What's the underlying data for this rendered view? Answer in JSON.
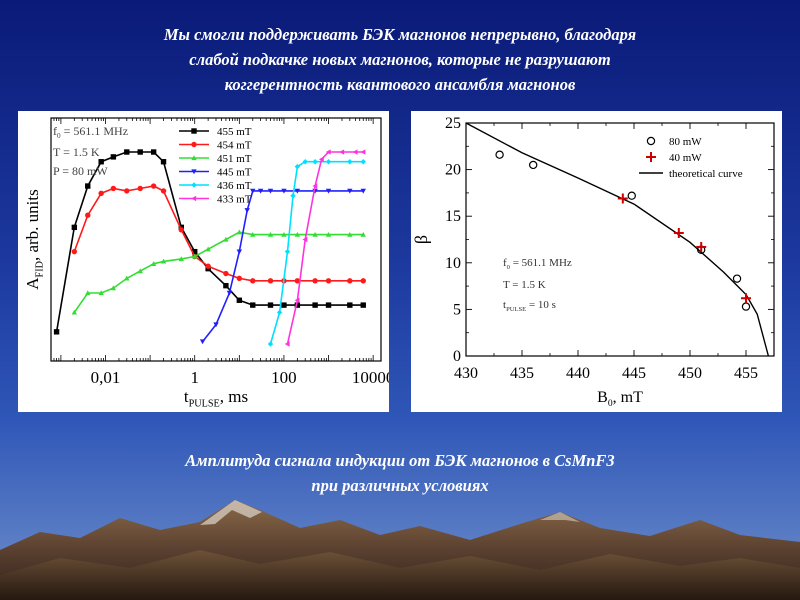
{
  "slide": {
    "title_lines": [
      "Мы смогли поддерживать БЭК магнонов непрерывно, благодаря",
      "слабой подкачке новых магнонов, которые не разрушают",
      "коггерентность квантового ансамбля магнонов"
    ],
    "caption_lines": [
      "Амплитуда сигнала индукции от БЭК магнонов в CsMnF3",
      "при различных условиях"
    ]
  },
  "chart_data": [
    {
      "type": "line",
      "x_scale": "log",
      "xlim": [
        0.0006,
        15000
      ],
      "ylim": [
        0,
        1
      ],
      "xlabel_main": "t",
      "xlabel_sub": "PULSE",
      "xlabel_unit": ", ms",
      "ylabel_main": "A",
      "ylabel_sub": "FID",
      "ylabel_unit": ", arb. units",
      "x_ticks": [
        0.01,
        1,
        100,
        10000
      ],
      "x_tick_labels": [
        "0,01",
        "1",
        "100",
        "10000"
      ],
      "annotations": [
        "f",
        "0",
        " = 561.1 MHz",
        "T = 1.5 K",
        "P = 80 mW"
      ],
      "legend_position": "top-right",
      "series": [
        {
          "name": "455 mT",
          "color": "#000000",
          "marker": "square",
          "x": [
            0.0008,
            0.002,
            0.004,
            0.008,
            0.015,
            0.03,
            0.06,
            0.12,
            0.2,
            0.5,
            1,
            2,
            5,
            10,
            20,
            50,
            100,
            200,
            500,
            1000,
            3000,
            6000
          ],
          "y": [
            0.12,
            0.55,
            0.72,
            0.82,
            0.84,
            0.86,
            0.86,
            0.86,
            0.82,
            0.55,
            0.45,
            0.38,
            0.31,
            0.25,
            0.23,
            0.23,
            0.23,
            0.23,
            0.23,
            0.23,
            0.23,
            0.23
          ]
        },
        {
          "name": "454 mT",
          "color": "#ff1a1a",
          "marker": "circle",
          "x": [
            0.002,
            0.004,
            0.008,
            0.015,
            0.03,
            0.06,
            0.12,
            0.2,
            0.5,
            1,
            2,
            5,
            10,
            20,
            50,
            100,
            200,
            500,
            1000,
            3000,
            6000
          ],
          "y": [
            0.45,
            0.6,
            0.69,
            0.71,
            0.7,
            0.71,
            0.72,
            0.7,
            0.54,
            0.43,
            0.39,
            0.36,
            0.34,
            0.33,
            0.33,
            0.33,
            0.33,
            0.33,
            0.33,
            0.33,
            0.33
          ]
        },
        {
          "name": "451 mT",
          "color": "#33dd33",
          "marker": "triangle-up",
          "x": [
            0.002,
            0.004,
            0.008,
            0.015,
            0.03,
            0.06,
            0.12,
            0.2,
            0.5,
            1,
            2,
            5,
            10,
            20,
            50,
            100,
            200,
            500,
            1000,
            3000,
            6000
          ],
          "y": [
            0.2,
            0.28,
            0.28,
            0.3,
            0.34,
            0.37,
            0.4,
            0.41,
            0.42,
            0.43,
            0.46,
            0.5,
            0.53,
            0.52,
            0.52,
            0.52,
            0.52,
            0.52,
            0.52,
            0.52,
            0.52
          ]
        },
        {
          "name": "445 mT",
          "color": "#2020ff",
          "marker": "triangle-down",
          "x": [
            1.5,
            3,
            6,
            10,
            15,
            20,
            30,
            50,
            100,
            200,
            500,
            1000,
            3000,
            6000
          ],
          "y": [
            0.08,
            0.15,
            0.28,
            0.45,
            0.62,
            0.7,
            0.7,
            0.7,
            0.7,
            0.7,
            0.7,
            0.7,
            0.7,
            0.7
          ]
        },
        {
          "name": "436 mT",
          "color": "#00e0ff",
          "marker": "diamond",
          "x": [
            50,
            80,
            120,
            160,
            200,
            300,
            500,
            1000,
            3000,
            6000
          ],
          "y": [
            0.07,
            0.2,
            0.45,
            0.68,
            0.8,
            0.82,
            0.82,
            0.82,
            0.82,
            0.82
          ]
        },
        {
          "name": "433 mT",
          "color": "#ff33dd",
          "marker": "triangle-left",
          "x": [
            120,
            200,
            300,
            500,
            700,
            1000,
            2000,
            4000,
            6000
          ],
          "y": [
            0.07,
            0.25,
            0.5,
            0.72,
            0.83,
            0.86,
            0.86,
            0.86,
            0.86
          ]
        }
      ]
    },
    {
      "type": "scatter",
      "xlim": [
        430,
        457.5
      ],
      "ylim": [
        0,
        25
      ],
      "xlabel_main": "B",
      "xlabel_sub": "0",
      "xlabel_unit": ", mT",
      "ylabel": "β",
      "x_ticks": [
        430,
        435,
        440,
        445,
        450,
        455
      ],
      "y_ticks": [
        0,
        5,
        10,
        15,
        20,
        25
      ],
      "annotations": [
        "f",
        "0",
        " = 561.1 MHz",
        "T = 1.5 K",
        "t",
        "PULSE",
        " = 10 s"
      ],
      "legend_position": "top-right",
      "series": [
        {
          "name": "80 mW",
          "marker": "open-circle",
          "color": "#000000",
          "x": [
            433,
            436,
            444.8,
            451,
            454.2,
            455
          ],
          "y": [
            21.6,
            20.5,
            17.2,
            11.4,
            8.3,
            5.3
          ]
        },
        {
          "name": "40 mW",
          "marker": "plus",
          "color": "#cc0000",
          "x": [
            444,
            449,
            451,
            455
          ],
          "y": [
            16.9,
            13.2,
            11.7,
            6.2
          ]
        },
        {
          "name": "theoretical curve",
          "marker": "line",
          "color": "#000000",
          "x": [
            430,
            435,
            440,
            445,
            450,
            453,
            455,
            456,
            457
          ],
          "y": [
            25,
            21.8,
            19.1,
            16.3,
            12.2,
            9.0,
            6.6,
            4.5,
            0
          ]
        }
      ]
    }
  ]
}
